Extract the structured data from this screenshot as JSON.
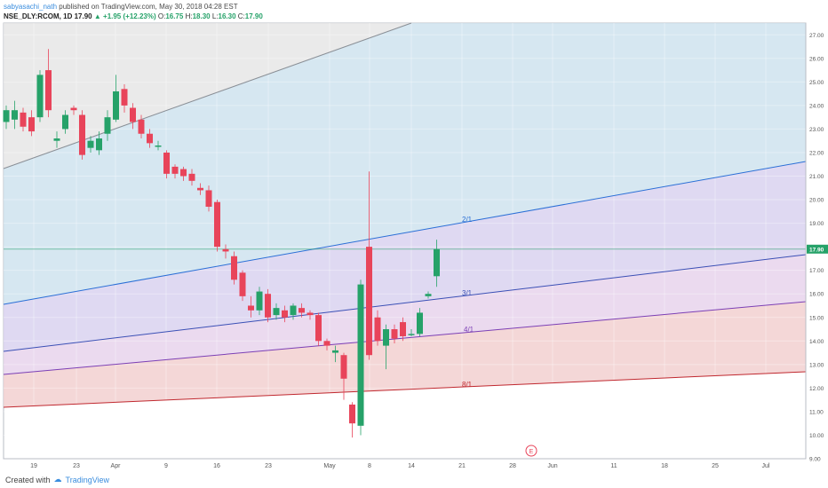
{
  "header": {
    "author": "sabyasachi_nath",
    "published_text": "published on TradingView.com, May 30, 2018 04:28 EST",
    "symbol": "NSE_DLY:RCOM, 1D",
    "last": "17.90",
    "change": "+1.95 (+12.23%)",
    "o_label": "O:",
    "o": "16.75",
    "h_label": "H:",
    "h": "18.30",
    "l_label": "L:",
    "l": "16.30",
    "c_label": "C:",
    "c": "17.90"
  },
  "footer": {
    "created_with": "Created with",
    "brand": "TradingView"
  },
  "colors": {
    "up": "#26a269",
    "down": "#e8445a",
    "grid": "#eef0f3",
    "fan_blue": "#2a6fd6",
    "fan_purple": "#7b3fb5",
    "fan_red": "#c0282f",
    "band_top": "#cfe3ef",
    "band_mid": "#d9d2f0",
    "band_low": "#e8d3ec",
    "band_bottom": "#f2d0d0",
    "band_outer": "#e6e6e6"
  },
  "chart_data": {
    "type": "candlestick",
    "x_tick_labels": [
      "19",
      "23",
      "Apr",
      "9",
      "16",
      "23",
      "May",
      "8",
      "14",
      "21",
      "28",
      "Jun",
      "11",
      "18",
      "25",
      "Jul"
    ],
    "y_tick_labels": [
      "9.00",
      "10.00",
      "11.00",
      "12.00",
      "13.00",
      "14.00",
      "15.00",
      "16.00",
      "17.00",
      "18.00",
      "19.00",
      "20.00",
      "21.00",
      "22.00",
      "23.00",
      "24.00",
      "25.00",
      "26.00",
      "27.00"
    ],
    "ylim": [
      9,
      27.5
    ],
    "last_price_label": "17.90",
    "fan_labels": [
      "2/1",
      "3/1",
      "4/1",
      "8/1"
    ],
    "event_marker": "E",
    "candles": [
      {
        "o": 23.3,
        "c": 23.8,
        "h": 24.0,
        "l": 23.0
      },
      {
        "o": 23.4,
        "c": 23.8,
        "h": 24.2,
        "l": 23.0
      },
      {
        "o": 23.7,
        "c": 23.1,
        "h": 23.9,
        "l": 22.9
      },
      {
        "o": 23.5,
        "c": 22.9,
        "h": 23.8,
        "l": 22.7
      },
      {
        "o": 23.5,
        "c": 25.3,
        "h": 25.5,
        "l": 23.3
      },
      {
        "o": 25.5,
        "c": 23.8,
        "h": 26.4,
        "l": 23.5
      },
      {
        "o": 22.5,
        "c": 22.6,
        "h": 22.9,
        "l": 22.2
      },
      {
        "o": 23.0,
        "c": 23.6,
        "h": 23.8,
        "l": 22.8
      },
      {
        "o": 23.9,
        "c": 23.8,
        "h": 24.0,
        "l": 23.6
      },
      {
        "o": 23.6,
        "c": 21.9,
        "h": 23.8,
        "l": 21.7
      },
      {
        "o": 22.2,
        "c": 22.5,
        "h": 22.7,
        "l": 22.0
      },
      {
        "o": 22.1,
        "c": 22.6,
        "h": 22.9,
        "l": 21.9
      },
      {
        "o": 22.8,
        "c": 23.5,
        "h": 23.8,
        "l": 22.5
      },
      {
        "o": 23.4,
        "c": 24.6,
        "h": 25.3,
        "l": 23.3
      },
      {
        "o": 24.7,
        "c": 24.0,
        "h": 24.9,
        "l": 23.7
      },
      {
        "o": 23.9,
        "c": 23.3,
        "h": 24.1,
        "l": 23.0
      },
      {
        "o": 23.4,
        "c": 22.8,
        "h": 23.6,
        "l": 22.6
      },
      {
        "o": 22.8,
        "c": 22.4,
        "h": 23.0,
        "l": 22.2
      },
      {
        "o": 22.3,
        "c": 22.3,
        "h": 22.5,
        "l": 22.1
      },
      {
        "o": 22.0,
        "c": 21.1,
        "h": 22.1,
        "l": 20.9
      },
      {
        "o": 21.4,
        "c": 21.1,
        "h": 21.5,
        "l": 20.9
      },
      {
        "o": 21.3,
        "c": 21.0,
        "h": 21.4,
        "l": 20.8
      },
      {
        "o": 21.1,
        "c": 20.8,
        "h": 21.3,
        "l": 20.6
      },
      {
        "o": 20.5,
        "c": 20.4,
        "h": 20.7,
        "l": 20.2
      },
      {
        "o": 20.4,
        "c": 19.7,
        "h": 20.6,
        "l": 19.5
      },
      {
        "o": 19.9,
        "c": 18.0,
        "h": 20.0,
        "l": 17.8
      },
      {
        "o": 17.9,
        "c": 17.8,
        "h": 18.1,
        "l": 17.5
      },
      {
        "o": 17.6,
        "c": 16.6,
        "h": 17.8,
        "l": 16.4
      },
      {
        "o": 16.9,
        "c": 15.9,
        "h": 17.0,
        "l": 15.7
      },
      {
        "o": 15.5,
        "c": 15.3,
        "h": 15.9,
        "l": 15.0
      },
      {
        "o": 15.3,
        "c": 16.1,
        "h": 16.3,
        "l": 15.1
      },
      {
        "o": 16.0,
        "c": 15.0,
        "h": 16.2,
        "l": 14.8
      },
      {
        "o": 15.1,
        "c": 15.4,
        "h": 15.6,
        "l": 14.9
      },
      {
        "o": 15.3,
        "c": 15.0,
        "h": 15.5,
        "l": 14.8
      },
      {
        "o": 15.1,
        "c": 15.5,
        "h": 15.6,
        "l": 14.9
      },
      {
        "o": 15.4,
        "c": 15.2,
        "h": 15.6,
        "l": 15.0
      },
      {
        "o": 15.2,
        "c": 15.1,
        "h": 15.3,
        "l": 14.9
      },
      {
        "o": 15.1,
        "c": 14.0,
        "h": 15.2,
        "l": 13.8
      },
      {
        "o": 14.0,
        "c": 13.8,
        "h": 14.1,
        "l": 13.6
      },
      {
        "o": 13.5,
        "c": 13.6,
        "h": 13.8,
        "l": 13.1
      },
      {
        "o": 13.4,
        "c": 12.4,
        "h": 13.5,
        "l": 11.5
      },
      {
        "o": 11.3,
        "c": 10.5,
        "h": 11.4,
        "l": 9.9
      },
      {
        "o": 10.4,
        "c": 16.4,
        "h": 16.6,
        "l": 10.0
      },
      {
        "o": 18.0,
        "c": 13.4,
        "h": 21.2,
        "l": 13.2
      },
      {
        "o": 15.0,
        "c": 14.0,
        "h": 15.3,
        "l": 13.8
      },
      {
        "o": 13.8,
        "c": 14.5,
        "h": 14.7,
        "l": 12.8
      },
      {
        "o": 14.5,
        "c": 14.1,
        "h": 14.7,
        "l": 13.9
      },
      {
        "o": 14.8,
        "c": 14.2,
        "h": 15.0,
        "l": 14.0
      },
      {
        "o": 14.3,
        "c": 14.3,
        "h": 14.5,
        "l": 14.2
      },
      {
        "o": 14.3,
        "c": 15.2,
        "h": 15.4,
        "l": 14.2
      },
      {
        "o": 15.9,
        "c": 16.0,
        "h": 16.1,
        "l": 15.8
      },
      {
        "o": 16.75,
        "c": 17.9,
        "h": 18.3,
        "l": 16.3
      }
    ]
  }
}
